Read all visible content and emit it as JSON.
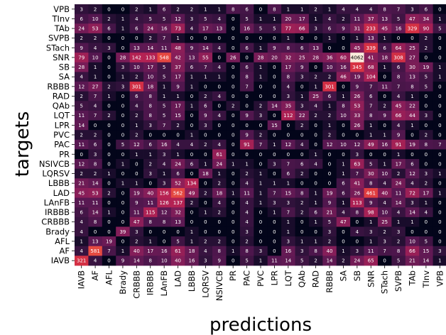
{
  "chart_data": {
    "type": "heatmap",
    "xlabel": "predictions",
    "ylabel": "targets",
    "xticks": [
      "IAVB",
      "AF",
      "AFL",
      "Brady",
      "CRBBB",
      "IRBBB",
      "LAnFB",
      "LAD",
      "LBBB",
      "LQRSV",
      "NSIVCB",
      "PR",
      "PAC",
      "PVC",
      "LPR",
      "LQT",
      "QAb",
      "RAD",
      "RBBB",
      "SA",
      "SB",
      "SNR",
      "STach",
      "SVPB",
      "TAb",
      "TInv",
      "VPB"
    ],
    "yticks": [
      "VPB",
      "TInv",
      "TAb",
      "SVPB",
      "STach",
      "SNR",
      "SB",
      "SA",
      "RBBB",
      "RAD",
      "QAb",
      "LQT",
      "LPR",
      "PVC",
      "PAC",
      "PR",
      "NSIVCB",
      "LQRSV",
      "LBBB",
      "LAD",
      "LAnFB",
      "IRBBB",
      "CRBBB",
      "Brady",
      "AFL",
      "AF",
      "IAVB"
    ],
    "values": [
      [
        3,
        2,
        0,
        0,
        2,
        1,
        6,
        2,
        2,
        1,
        1,
        8,
        6,
        0,
        8,
        1,
        1,
        2,
        1,
        4,
        4,
        4,
        8,
        7,
        3,
        6,
        0
      ],
      [
        6,
        10,
        2,
        1,
        4,
        5,
        5,
        12,
        3,
        5,
        4,
        0,
        5,
        1,
        1,
        20,
        17,
        1,
        4,
        2,
        11,
        37,
        13,
        5,
        47,
        34,
        1
      ],
      [
        24,
        53,
        6,
        1,
        6,
        24,
        16,
        73,
        4,
        17,
        13,
        0,
        16,
        5,
        5,
        77,
        66,
        3,
        6,
        9,
        31,
        233,
        45,
        16,
        329,
        90,
        5
      ],
      [
        2,
        2,
        0,
        0,
        0,
        2,
        7,
        1,
        0,
        0,
        0,
        0,
        0,
        0,
        0,
        1,
        0,
        0,
        1,
        0,
        1,
        13,
        1,
        0,
        0,
        2,
        0
      ],
      [
        9,
        4,
        3,
        0,
        13,
        14,
        11,
        48,
        9,
        14,
        4,
        0,
        6,
        1,
        9,
        8,
        6,
        13,
        0,
        0,
        45,
        339,
        6,
        64,
        25,
        2,
        0
      ],
      [
        79,
        10,
        0,
        28,
        142,
        133,
        548,
        42,
        13,
        55,
        0,
        26,
        0,
        28,
        20,
        32,
        25,
        28,
        36,
        60,
        4062,
        41,
        18,
        308,
        27,
        0,
        0
      ],
      [
        28,
        1,
        0,
        3,
        10,
        17,
        5,
        37,
        6,
        7,
        4,
        0,
        6,
        1,
        0,
        17,
        9,
        0,
        10,
        16,
        345,
        68,
        1,
        6,
        30,
        19,
        1
      ],
      [
        4,
        1,
        0,
        1,
        2,
        10,
        5,
        17,
        1,
        1,
        1,
        0,
        8,
        1,
        0,
        8,
        3,
        2,
        2,
        46,
        19,
        104,
        0,
        8,
        13,
        5,
        1
      ],
      [
        12,
        27,
        2,
        3,
        301,
        18,
        1,
        9,
        1,
        0,
        0,
        0,
        7,
        0,
        0,
        4,
        0,
        1,
        301,
        0,
        9,
        7,
        11,
        7,
        8,
        5,
        0
      ],
      [
        2,
        7,
        1,
        0,
        6,
        8,
        1,
        1,
        0,
        2,
        4,
        0,
        0,
        0,
        0,
        3,
        1,
        25,
        6,
        1,
        26,
        6,
        0,
        4,
        1,
        0,
        0
      ],
      [
        5,
        4,
        0,
        0,
        4,
        8,
        5,
        17,
        1,
        6,
        0,
        2,
        0,
        2,
        14,
        35,
        3,
        4,
        1,
        8,
        53,
        7,
        2,
        45,
        22,
        0,
        0
      ],
      [
        11,
        7,
        2,
        0,
        2,
        8,
        5,
        15,
        0,
        9,
        4,
        0,
        9,
        3,
        0,
        112,
        22,
        2,
        2,
        10,
        33,
        8,
        9,
        66,
        44,
        3,
        0
      ],
      [
        14,
        0,
        0,
        0,
        1,
        3,
        7,
        2,
        0,
        3,
        0,
        0,
        0,
        0,
        15,
        0,
        2,
        0,
        1,
        0,
        26,
        1,
        0,
        4,
        1,
        0,
        0
      ],
      [
        2,
        2,
        0,
        0,
        2,
        0,
        0,
        0,
        1,
        0,
        0,
        0,
        9,
        2,
        0,
        0,
        0,
        0,
        2,
        0,
        0,
        1,
        1,
        9,
        0,
        2,
        0
      ],
      [
        11,
        6,
        0,
        5,
        12,
        6,
        16,
        4,
        4,
        2,
        4,
        0,
        91,
        7,
        1,
        12,
        4,
        0,
        12,
        10,
        12,
        49,
        16,
        91,
        19,
        8,
        7
      ],
      [
        0,
        3,
        0,
        0,
        1,
        1,
        3,
        1,
        0,
        0,
        61,
        0,
        0,
        0,
        0,
        0,
        0,
        1,
        0,
        0,
        3,
        0,
        0,
        1,
        0,
        0,
        0
      ],
      [
        12,
        8,
        0,
        1,
        0,
        2,
        4,
        24,
        6,
        1,
        24,
        1,
        1,
        0,
        3,
        7,
        6,
        4,
        0,
        1,
        63,
        5,
        1,
        17,
        6,
        0,
        0
      ],
      [
        2,
        2,
        1,
        0,
        0,
        3,
        1,
        6,
        0,
        18,
        1,
        0,
        2,
        1,
        0,
        6,
        2,
        0,
        0,
        1,
        7,
        30,
        10,
        2,
        12,
        3,
        1
      ],
      [
        21,
        14,
        0,
        1,
        1,
        0,
        3,
        52,
        134,
        0,
        2,
        0,
        4,
        1,
        1,
        1,
        0,
        0,
        0,
        6,
        41,
        8,
        4,
        24,
        4,
        2,
        0
      ],
      [
        45,
        53,
        2,
        0,
        19,
        40,
        156,
        562,
        49,
        2,
        18,
        1,
        11,
        1,
        7,
        15,
        8,
        1,
        19,
        6,
        26,
        461,
        40,
        11,
        72,
        17,
        1
      ],
      [
        11,
        11,
        0,
        0,
        9,
        11,
        126,
        137,
        2,
        0,
        4,
        0,
        4,
        1,
        3,
        3,
        2,
        1,
        9,
        1,
        113,
        9,
        4,
        14,
        3,
        1,
        0
      ],
      [
        6,
        14,
        1,
        0,
        11,
        115,
        12,
        32,
        0,
        1,
        2,
        0,
        4,
        0,
        1,
        7,
        2,
        6,
        21,
        4,
        8,
        98,
        10,
        4,
        14,
        4,
        0
      ],
      [
        4,
        8,
        0,
        0,
        47,
        8,
        8,
        13,
        0,
        0,
        0,
        0,
        4,
        0,
        0,
        1,
        0,
        1,
        5,
        47,
        0,
        1,
        25,
        1,
        1,
        0,
        0
      ],
      [
        4,
        0,
        0,
        39,
        3,
        0,
        0,
        0,
        1,
        0,
        0,
        0,
        3,
        0,
        0,
        1,
        0,
        0,
        3,
        0,
        4,
        3,
        2,
        3,
        0,
        0,
        0
      ],
      [
        1,
        13,
        19,
        0,
        2,
        1,
        0,
        5,
        1,
        2,
        2,
        0,
        2,
        0,
        0,
        3,
        1,
        1,
        2,
        0,
        0,
        1,
        3,
        2,
        10,
        5,
        0
      ],
      [
        4,
        581,
        7,
        1,
        40,
        17,
        16,
        61,
        18,
        4,
        8,
        1,
        8,
        3,
        0,
        16,
        3,
        8,
        40,
        1,
        3,
        11,
        7,
        8,
        66,
        15,
        3
      ],
      [
        321,
        4,
        0,
        9,
        14,
        8,
        10,
        40,
        16,
        3,
        9,
        0,
        5,
        1,
        11,
        14,
        5,
        2,
        14,
        2,
        24,
        65,
        0,
        5,
        21,
        14,
        1
      ]
    ],
    "colormap": "rocket",
    "scale": "log",
    "vmax": 4062,
    "grid": false
  }
}
